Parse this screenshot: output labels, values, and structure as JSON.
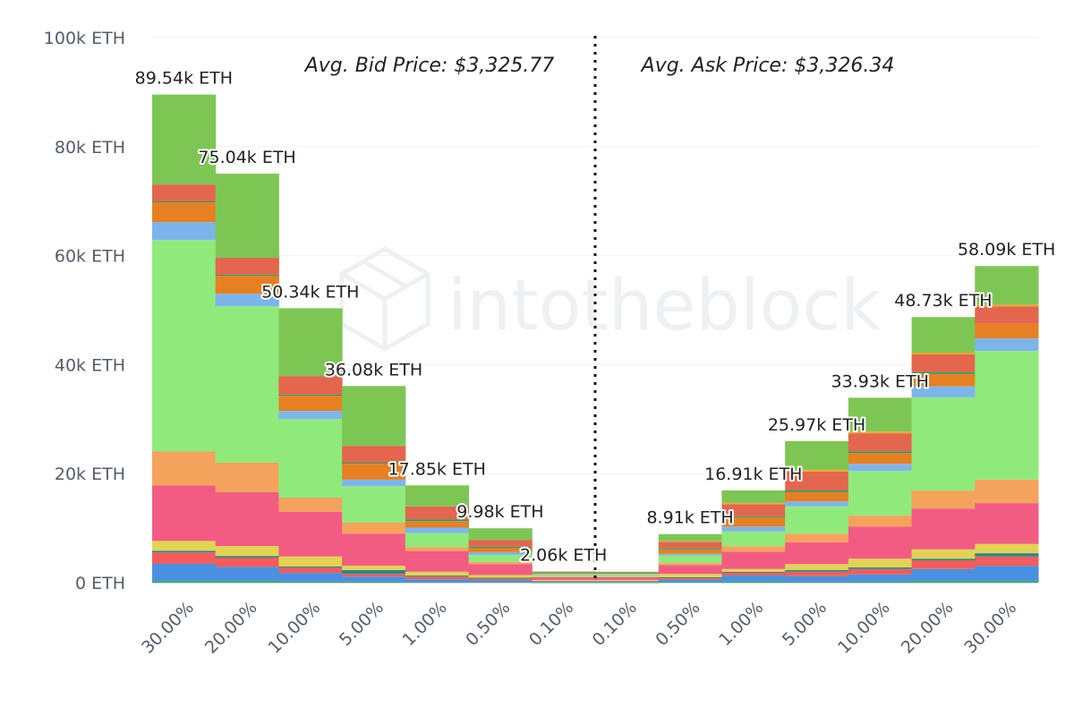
{
  "chart_data": {
    "type": "bar",
    "stacked": true,
    "categories": [
      "30.00%",
      "20.00%",
      "10.00%",
      "5.00%",
      "1.00%",
      "0.50%",
      "0.10%",
      "0.10%",
      "0.50%",
      "1.00%",
      "5.00%",
      "10.00%",
      "20.00%",
      "30.00%"
    ],
    "sides": [
      "bid",
      "bid",
      "bid",
      "bid",
      "bid",
      "bid",
      "bid",
      "ask",
      "ask",
      "ask",
      "ask",
      "ask",
      "ask",
      "ask"
    ],
    "totals_labels": [
      "89.54k ETH",
      "75.04k ETH",
      "50.34k ETH",
      "36.08k ETH",
      "17.85k ETH",
      "9.98k ETH",
      "2.06k ETH",
      "",
      "8.91k ETH",
      "16.91k ETH",
      "25.97k ETH",
      "33.93k ETH",
      "48.73k ETH",
      "58.09k ETH"
    ],
    "unit": "k ETH",
    "ylim": [
      0,
      100
    ],
    "yticks": [
      {
        "value": 0,
        "label": "0 ETH"
      },
      {
        "value": 20,
        "label": "20k ETH"
      },
      {
        "value": 40,
        "label": "40k ETH"
      },
      {
        "value": 60,
        "label": "60k ETH"
      },
      {
        "value": 80,
        "label": "80k ETH"
      },
      {
        "value": 100,
        "label": "100k ETH"
      }
    ],
    "grid": true,
    "annotations": {
      "avg_bid": "Avg. Bid Price: $3,325.77",
      "avg_ask": "Avg. Ask Price: $3,326.34"
    },
    "series": [
      {
        "color": "#2ea84f",
        "values": [
          0.3,
          0.3,
          0.2,
          0.2,
          0.1,
          0.1,
          0.05,
          0.05,
          0.1,
          0.2,
          0.2,
          0.2,
          0.3,
          0.3
        ]
      },
      {
        "color": "#4a90e2",
        "values": [
          3.15,
          2.6,
          1.6,
          0.9,
          0.5,
          0.3,
          0.1,
          0.1,
          0.4,
          1.1,
          1.0,
          1.3,
          2.2,
          2.8
        ]
      },
      {
        "color": "#f25c5c",
        "values": [
          2.1,
          1.7,
          1.0,
          0.5,
          0.5,
          0.3,
          0.1,
          0.1,
          0.3,
          0.5,
          0.8,
          1.0,
          1.6,
          1.7
        ]
      },
      {
        "color": "#23898a",
        "values": [
          0.3,
          0.3,
          0.2,
          0.7,
          0.2,
          0.2,
          0.05,
          0.05,
          0.2,
          0.2,
          0.3,
          0.3,
          0.3,
          0.6
        ]
      },
      {
        "color": "#e3d353",
        "values": [
          1.8,
          1.8,
          1.8,
          0.8,
          0.7,
          0.5,
          0.2,
          0.2,
          0.6,
          0.5,
          1.1,
          1.6,
          1.7,
          1.7
        ]
      },
      {
        "color": "#f25c83",
        "values": [
          10.2,
          9.9,
          8.2,
          5.9,
          3.8,
          2.0,
          0.5,
          0.5,
          1.6,
          3.2,
          4.0,
          5.9,
          7.5,
          7.5
        ]
      },
      {
        "color": "#f5a35c",
        "values": [
          6.2,
          5.4,
          2.6,
          2.0,
          0.7,
          0.4,
          0.1,
          0.1,
          0.4,
          1.0,
          1.6,
          2.0,
          3.3,
          4.3
        ]
      },
      {
        "color": "#90ea7b",
        "values": [
          38.8,
          28.7,
          14.4,
          6.7,
          2.6,
          1.3,
          0.4,
          0.4,
          1.4,
          2.7,
          5.0,
          8.2,
          17.1,
          23.6
        ]
      },
      {
        "color": "#7cb5ec",
        "values": [
          3.3,
          2.3,
          1.5,
          1.2,
          1.0,
          0.5,
          0.1,
          0.1,
          0.3,
          0.9,
          0.9,
          1.3,
          2.0,
          2.3
        ]
      },
      {
        "color": "#e68022",
        "values": [
          3.6,
          3.3,
          2.8,
          2.9,
          1.2,
          0.8,
          0.1,
          0.1,
          0.8,
          1.7,
          1.7,
          2.0,
          2.3,
          2.7
        ]
      },
      {
        "color": "#20a060",
        "values": [
          0.2,
          0.2,
          0.2,
          0.2,
          0.3,
          0.2,
          0.05,
          0.05,
          0.2,
          0.2,
          0.3,
          0.3,
          0.3,
          0
        ]
      },
      {
        "color": "#e4664f",
        "values": [
          3.1,
          3.1,
          3.4,
          3.1,
          2.4,
          1.2,
          0.2,
          0.2,
          1.2,
          2.2,
          3.5,
          3.3,
          3.3,
          3.2
        ]
      },
      {
        "color": "#f5a623",
        "values": [
          0,
          0,
          0,
          0,
          0,
          0,
          0,
          0,
          0.1,
          0.2,
          0.3,
          0.3,
          0.3,
          0.3
        ]
      },
      {
        "color": "#7ec654",
        "values": [
          16.49,
          15.44,
          12.44,
          10.98,
          3.85,
          2.18,
          0.11,
          0.05,
          1.31,
          2.31,
          5.27,
          6.23,
          6.53,
          7.09
        ]
      }
    ]
  },
  "watermark": "intotheblock"
}
